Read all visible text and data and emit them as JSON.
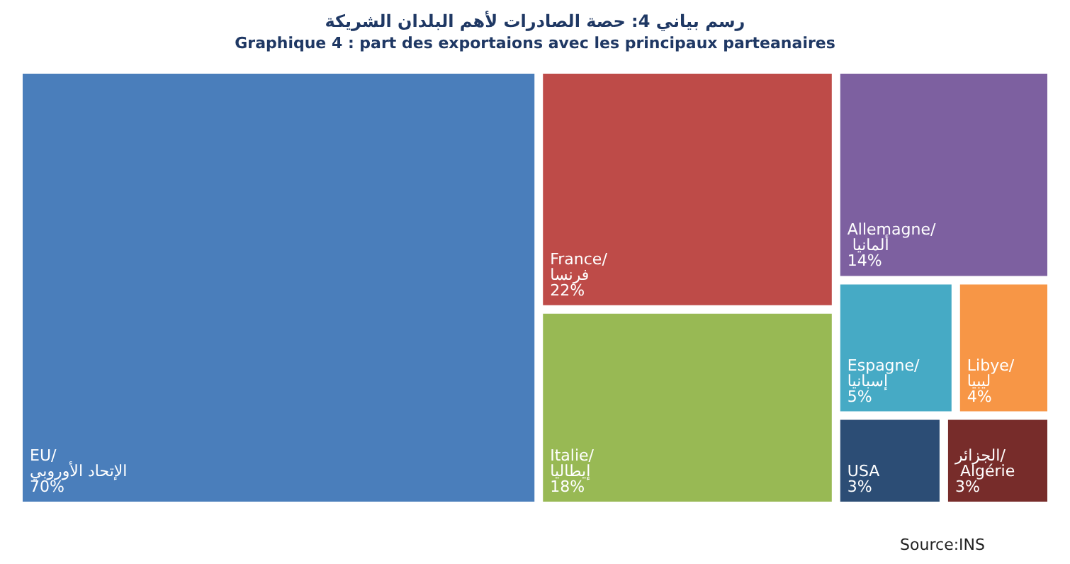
{
  "chart_data": {
    "type": "other",
    "title": "رسم بياني 4: حصة الصادرات لأهم البلدان الشريكة",
    "subtitle": "Graphique 4 : part des exportaions avec les principaux parteanaires",
    "categories": [
      "EU/الإتحاد الأوروبي",
      "France/فرنسا",
      "Italie/إيطاليا",
      "Allemagne/ ألمانيا",
      "Espagne/إسبانيا",
      "Libye/ليبيا",
      "USA",
      "الجزائر/ Algérie"
    ],
    "values": [
      70,
      22,
      18,
      14,
      5,
      4,
      3,
      3
    ],
    "value_labels": [
      "70%",
      "22%",
      "18%",
      "14%",
      "5%",
      "4%",
      "3%",
      "3%"
    ],
    "colors": [
      "#4a7ebb",
      "#be4b48",
      "#98b954",
      "#7d60a0",
      "#46aac5",
      "#f79646",
      "#2c4d75",
      "#772c2a"
    ],
    "annotations": [
      "Source:INS"
    ]
  }
}
